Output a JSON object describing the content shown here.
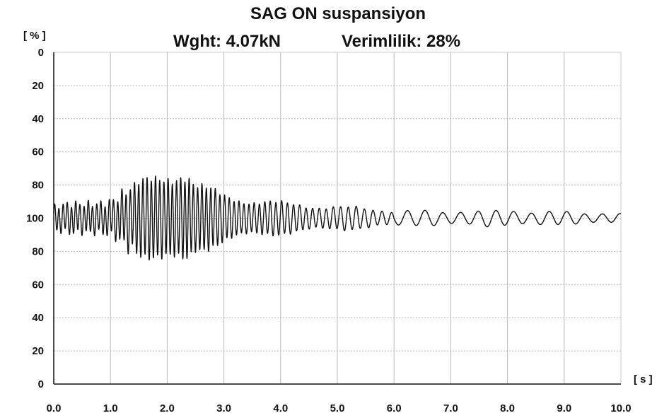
{
  "chart_data": {
    "type": "line",
    "title": "SAG ON suspansiyon",
    "subtitle_left": "Wght: 4.07kN",
    "subtitle_right": "Verimlilik: 28%",
    "y_unit": "[ % ]",
    "x_unit": "[ s ]",
    "xlim": [
      0.0,
      10.0
    ],
    "ylim_note": "symmetric scale: 100 at centre, 0 at top and bottom",
    "x_tick_labels": [
      "0.0",
      "1.0",
      "2.0",
      "3.0",
      "4.0",
      "5.0",
      "6.0",
      "7.0",
      "8.0",
      "9.0",
      "10.0"
    ],
    "y_tick_labels": [
      "0",
      "20",
      "40",
      "60",
      "80",
      "100",
      "80",
      "60",
      "40",
      "20",
      "0"
    ],
    "grid": true,
    "line_color": "#111111",
    "series": [
      {
        "signal": "oscillating response",
        "envelope_time_s": [
          0.0,
          0.5,
          1.0,
          1.5,
          2.0,
          2.25,
          2.35,
          2.5,
          3.0,
          3.5,
          4.0,
          4.5,
          5.0,
          5.5,
          6.0,
          7.0,
          8.0,
          9.0,
          10.0
        ],
        "envelope_amplitude_pct": [
          8,
          9,
          14,
          22,
          30,
          33,
          31,
          22,
          15,
          12,
          10,
          8.5,
          7.5,
          6.5,
          5,
          4.5,
          5,
          4,
          3
        ]
      }
    ]
  }
}
